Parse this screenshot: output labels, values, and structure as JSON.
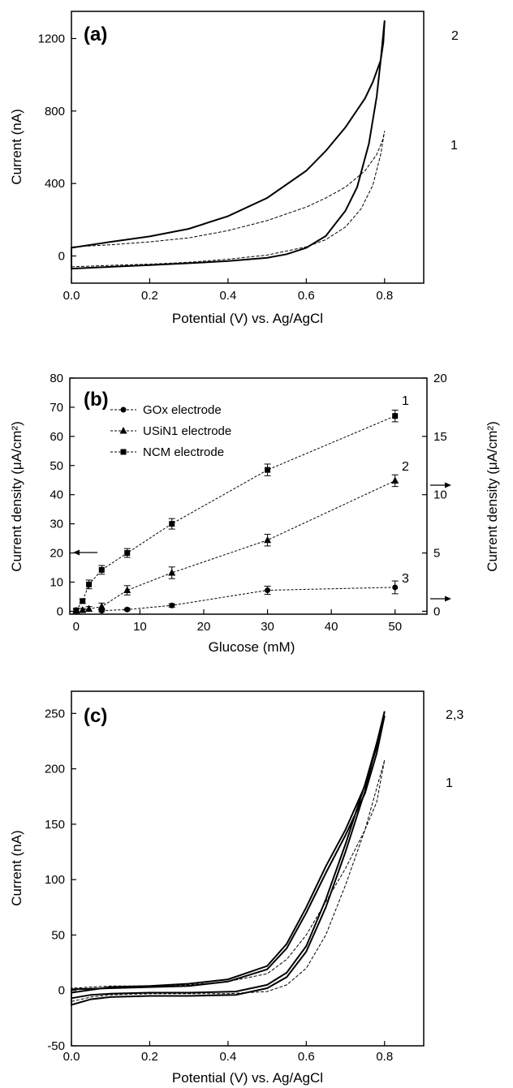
{
  "chart_data": [
    {
      "type": "line",
      "panel_label": "(a)",
      "xlabel": "Potential (V) vs. Ag/AgCl",
      "ylabel": "Current (nA)",
      "xlim": [
        0.0,
        0.9
      ],
      "ylim": [
        -150,
        1350
      ],
      "xticks": [
        0.0,
        0.2,
        0.4,
        0.6,
        0.8
      ],
      "xtick_labels": [
        "0.0",
        "0.2",
        "0.4",
        "0.6",
        "0.8"
      ],
      "yticks": [
        0,
        400,
        800,
        1200
      ],
      "ytick_labels": [
        "0",
        "400",
        "800",
        "1200"
      ],
      "grid": false,
      "series": [
        {
          "label": "1",
          "style": "dashed",
          "color": "#000000",
          "points": [
            [
              0.0,
              -60
            ],
            [
              0.1,
              -52
            ],
            [
              0.2,
              -45
            ],
            [
              0.3,
              -35
            ],
            [
              0.4,
              -18
            ],
            [
              0.5,
              5
            ],
            [
              0.6,
              50
            ],
            [
              0.65,
              90
            ],
            [
              0.7,
              160
            ],
            [
              0.74,
              260
            ],
            [
              0.77,
              390
            ],
            [
              0.79,
              560
            ],
            [
              0.8,
              690
            ],
            [
              0.795,
              640
            ],
            [
              0.78,
              560
            ],
            [
              0.75,
              470
            ],
            [
              0.7,
              380
            ],
            [
              0.65,
              320
            ],
            [
              0.6,
              270
            ],
            [
              0.5,
              195
            ],
            [
              0.4,
              140
            ],
            [
              0.3,
              100
            ],
            [
              0.2,
              78
            ],
            [
              0.1,
              62
            ],
            [
              0.0,
              50
            ]
          ]
        },
        {
          "label": "2",
          "style": "solid",
          "color": "#000000",
          "points": [
            [
              0.0,
              -70
            ],
            [
              0.1,
              -60
            ],
            [
              0.2,
              -50
            ],
            [
              0.3,
              -40
            ],
            [
              0.4,
              -28
            ],
            [
              0.5,
              -10
            ],
            [
              0.55,
              10
            ],
            [
              0.6,
              45
            ],
            [
              0.65,
              110
            ],
            [
              0.7,
              250
            ],
            [
              0.73,
              380
            ],
            [
              0.76,
              620
            ],
            [
              0.78,
              880
            ],
            [
              0.79,
              1080
            ],
            [
              0.8,
              1300
            ],
            [
              0.797,
              1180
            ],
            [
              0.79,
              1080
            ],
            [
              0.77,
              960
            ],
            [
              0.75,
              870
            ],
            [
              0.7,
              710
            ],
            [
              0.65,
              580
            ],
            [
              0.6,
              470
            ],
            [
              0.5,
              320
            ],
            [
              0.4,
              220
            ],
            [
              0.3,
              150
            ],
            [
              0.2,
              108
            ],
            [
              0.1,
              78
            ],
            [
              0.0,
              45
            ]
          ]
        }
      ]
    },
    {
      "type": "line",
      "panel_label": "(b)",
      "xlabel": "Glucose (mM)",
      "ylabel": "Current density (μA/cm²)",
      "ylabel_right": "Current density (μA/cm²)",
      "xlim": [
        -1,
        55
      ],
      "ylim": [
        -1,
        80
      ],
      "ylim_right": [
        -0.25,
        20
      ],
      "xticks": [
        0,
        10,
        20,
        30,
        40,
        50
      ],
      "xtick_labels": [
        "0",
        "10",
        "20",
        "30",
        "40",
        "50"
      ],
      "yticks": [
        0,
        10,
        20,
        30,
        40,
        50,
        60,
        70,
        80
      ],
      "ytick_labels": [
        "0",
        "10",
        "20",
        "30",
        "40",
        "50",
        "60",
        "70",
        "80"
      ],
      "yticks_right": [
        0,
        5,
        10,
        15,
        20
      ],
      "ytick_labels_right": [
        "0",
        "5",
        "10",
        "15",
        "20"
      ],
      "grid": false,
      "legend": {
        "position": "top-left",
        "entries": [
          "GOx electrode",
          "USiN1 electrode",
          "NCM electrode"
        ]
      },
      "series": [
        {
          "name": "NCM electrode",
          "label": "1",
          "marker": "square",
          "axis": "left",
          "x": [
            0,
            1,
            2,
            4,
            8,
            15,
            30,
            50
          ],
          "y": [
            0.3,
            3.5,
            9.2,
            14.2,
            20,
            30,
            48.5,
            67
          ],
          "err": [
            0.5,
            0.8,
            1.5,
            1.5,
            1.5,
            1.8,
            2,
            2
          ]
        },
        {
          "name": "USiN1 electrode",
          "label": "2",
          "marker": "triangle",
          "axis": "right",
          "x": [
            0,
            1,
            2,
            4,
            8,
            15,
            30,
            50
          ],
          "y": [
            0.05,
            0.1,
            0.2,
            0.4,
            1.8,
            3.3,
            6.1,
            11.2
          ],
          "err": [
            0.15,
            0.15,
            0.2,
            0.3,
            0.4,
            0.5,
            0.5,
            0.5
          ]
        },
        {
          "name": "GOx electrode",
          "label": "3",
          "marker": "circle",
          "axis": "right",
          "x": [
            4,
            8,
            15,
            30,
            50
          ],
          "y": [
            0.05,
            0.15,
            0.5,
            1.8,
            2.05
          ],
          "err": [
            0.1,
            0.1,
            0.15,
            0.35,
            0.55
          ]
        }
      ]
    },
    {
      "type": "line",
      "panel_label": "(c)",
      "xlabel": "Potential (V) vs. Ag/AgCl",
      "ylabel": "Current (nA)",
      "xlim": [
        0.0,
        0.9
      ],
      "ylim": [
        -50,
        270
      ],
      "xticks": [
        0.0,
        0.2,
        0.4,
        0.6,
        0.8
      ],
      "xtick_labels": [
        "0.0",
        "0.2",
        "0.4",
        "0.6",
        "0.8"
      ],
      "yticks": [
        -50,
        0,
        50,
        100,
        150,
        200,
        250
      ],
      "ytick_labels": [
        "-50",
        "0",
        "50",
        "100",
        "150",
        "200",
        "250"
      ],
      "grid": false,
      "series": [
        {
          "label": "1",
          "style": "dashed",
          "color": "#000000",
          "points": [
            [
              0.0,
              -10
            ],
            [
              0.05,
              -6
            ],
            [
              0.1,
              -4
            ],
            [
              0.2,
              -3
            ],
            [
              0.3,
              -3
            ],
            [
              0.4,
              -3
            ],
            [
              0.5,
              -1
            ],
            [
              0.55,
              5
            ],
            [
              0.6,
              20
            ],
            [
              0.65,
              50
            ],
            [
              0.7,
              95
            ],
            [
              0.75,
              145
            ],
            [
              0.8,
              208
            ],
            [
              0.78,
              170
            ],
            [
              0.75,
              145
            ],
            [
              0.7,
              110
            ],
            [
              0.65,
              80
            ],
            [
              0.6,
              50
            ],
            [
              0.55,
              28
            ],
            [
              0.5,
              15
            ],
            [
              0.4,
              8
            ],
            [
              0.3,
              5
            ],
            [
              0.2,
              4
            ],
            [
              0.1,
              4
            ],
            [
              0.0,
              2
            ]
          ]
        },
        {
          "label": "2,3",
          "style": "solid",
          "color": "#000000",
          "points": [
            [
              0.0,
              -13
            ],
            [
              0.05,
              -8
            ],
            [
              0.1,
              -6
            ],
            [
              0.2,
              -5
            ],
            [
              0.3,
              -5
            ],
            [
              0.42,
              -4
            ],
            [
              0.5,
              2
            ],
            [
              0.55,
              12
            ],
            [
              0.6,
              35
            ],
            [
              0.65,
              75
            ],
            [
              0.7,
              125
            ],
            [
              0.75,
              180
            ],
            [
              0.8,
              252
            ],
            [
              0.78,
              220
            ],
            [
              0.75,
              185
            ],
            [
              0.7,
              145
            ],
            [
              0.65,
              112
            ],
            [
              0.6,
              75
            ],
            [
              0.55,
              42
            ],
            [
              0.5,
              22
            ],
            [
              0.4,
              10
            ],
            [
              0.3,
              6
            ],
            [
              0.2,
              4
            ],
            [
              0.1,
              3
            ],
            [
              0.0,
              -2
            ]
          ]
        },
        {
          "label": "2,3",
          "style": "solid",
          "color": "#000000",
          "points": [
            [
              0.0,
              -7
            ],
            [
              0.05,
              -4
            ],
            [
              0.1,
              -3
            ],
            [
              0.2,
              -2
            ],
            [
              0.3,
              -2
            ],
            [
              0.42,
              -1
            ],
            [
              0.5,
              5
            ],
            [
              0.55,
              16
            ],
            [
              0.6,
              40
            ],
            [
              0.65,
              82
            ],
            [
              0.7,
              132
            ],
            [
              0.75,
              186
            ],
            [
              0.8,
              248
            ],
            [
              0.78,
              214
            ],
            [
              0.75,
              178
            ],
            [
              0.7,
              140
            ],
            [
              0.65,
              106
            ],
            [
              0.6,
              70
            ],
            [
              0.55,
              38
            ],
            [
              0.5,
              19
            ],
            [
              0.4,
              8
            ],
            [
              0.3,
              4
            ],
            [
              0.2,
              3
            ],
            [
              0.1,
              2
            ],
            [
              0.0,
              1
            ]
          ]
        }
      ]
    }
  ]
}
